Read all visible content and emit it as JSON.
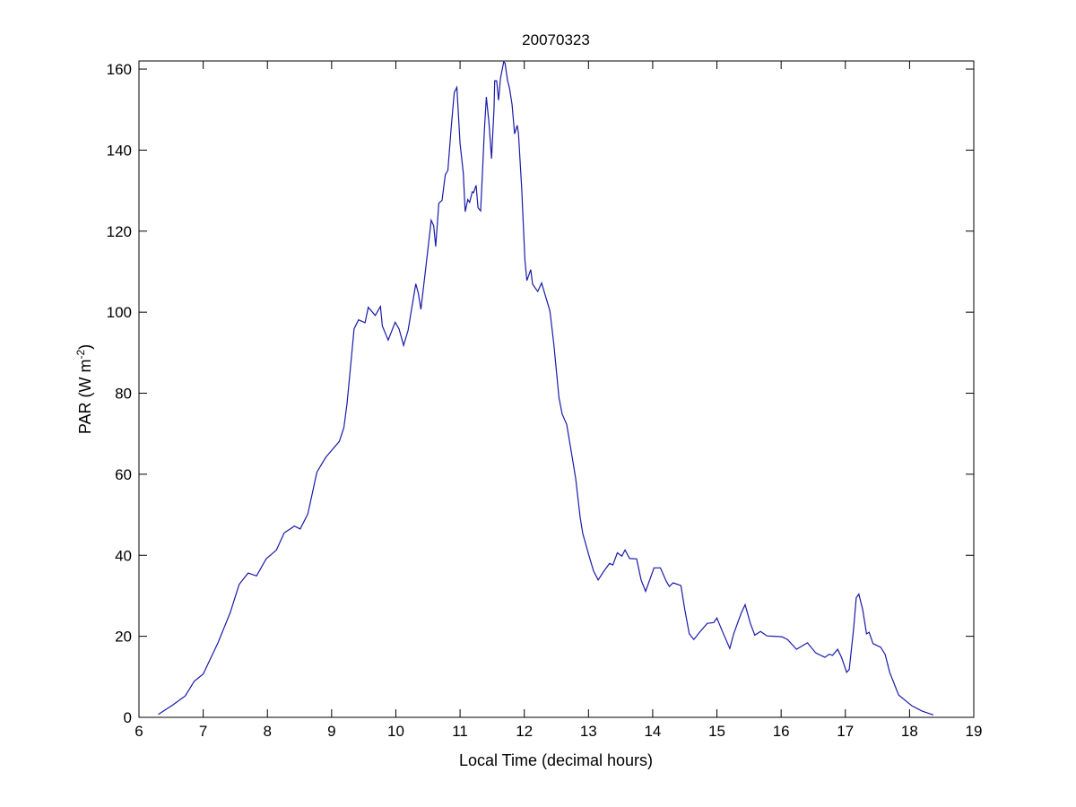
{
  "chart_data": {
    "type": "line",
    "title": "20070323",
    "xlabel": "Local Time (decimal hours)",
    "ylabel": {
      "main": "PAR (W m",
      "sup": "-2",
      "end": ")"
    },
    "xlim": [
      6,
      19
    ],
    "ylim": [
      0,
      162
    ],
    "xticks": [
      6,
      7,
      8,
      9,
      10,
      11,
      12,
      13,
      14,
      15,
      16,
      17,
      18,
      19
    ],
    "yticks": [
      0,
      20,
      40,
      60,
      80,
      100,
      120,
      140,
      160
    ],
    "grid": false,
    "line_color": "#1a1aa8",
    "series": [
      {
        "x": [
          6.3,
          6.53,
          6.72,
          6.86,
          7.0,
          7.23,
          7.42,
          7.56,
          7.7,
          7.83,
          7.98,
          8.14,
          8.26,
          8.42,
          8.51,
          8.63,
          8.77,
          8.91,
          9.12,
          9.19,
          9.24,
          9.28,
          9.35,
          9.42,
          9.52,
          9.57,
          9.68,
          9.76,
          9.79,
          9.88,
          9.99,
          10.05,
          10.12,
          10.19,
          10.31,
          10.35,
          10.39,
          10.47,
          10.55,
          10.59,
          10.62,
          10.67,
          10.72,
          10.77,
          10.81,
          10.86,
          10.91,
          10.95,
          11.0,
          11.05,
          11.08,
          11.12,
          11.15,
          11.19,
          11.21,
          11.25,
          11.28,
          11.32,
          11.34,
          11.38,
          11.41,
          11.45,
          11.49,
          11.53,
          11.54,
          11.57,
          11.6,
          11.63,
          11.68,
          11.7,
          11.74,
          11.77,
          11.81,
          11.85,
          11.89,
          11.91,
          11.96,
          12.01,
          12.04,
          12.1,
          12.13,
          12.21,
          12.27,
          12.4,
          12.46,
          12.54,
          12.59,
          12.66,
          12.73,
          12.8,
          12.87,
          12.91,
          13.01,
          13.08,
          13.15,
          13.24,
          13.33,
          13.38,
          13.45,
          13.52,
          13.57,
          13.64,
          13.75,
          13.82,
          13.89,
          14.02,
          14.12,
          14.21,
          14.26,
          14.32,
          14.44,
          14.5,
          14.57,
          14.64,
          14.73,
          14.85,
          14.95,
          15.0,
          15.08,
          15.2,
          15.26,
          15.38,
          15.44,
          15.52,
          15.59,
          15.68,
          15.78,
          16.01,
          16.1,
          16.24,
          16.41,
          16.54,
          16.68,
          16.75,
          16.8,
          16.88,
          16.94,
          17.02,
          17.06,
          17.13,
          17.17,
          17.21,
          17.27,
          17.33,
          17.37,
          17.43,
          17.55,
          17.62,
          17.69,
          17.83,
          18.04,
          18.2,
          18.37
        ],
        "y": [
          0.7,
          3.1,
          5.3,
          8.9,
          10.7,
          18.4,
          25.8,
          32.8,
          35.6,
          34.9,
          39.1,
          41.3,
          45.5,
          47.2,
          46.5,
          50.2,
          60.5,
          64.2,
          68.1,
          71.5,
          77.4,
          84.1,
          95.9,
          98.1,
          97.4,
          101.2,
          99.2,
          101.4,
          96.6,
          93.1,
          97.5,
          95.9,
          91.8,
          95.5,
          107.0,
          104.7,
          100.7,
          111.4,
          122.7,
          121.3,
          116.2,
          126.9,
          127.6,
          133.9,
          135.0,
          145.3,
          154.2,
          155.5,
          141.6,
          134.3,
          124.8,
          127.8,
          127.1,
          129.7,
          129.5,
          131.3,
          125.8,
          125.0,
          131.3,
          145.3,
          153.1,
          146.8,
          137.9,
          150.5,
          157.1,
          157.1,
          152.3,
          157.8,
          161.8,
          161.5,
          157.1,
          155.3,
          151.2,
          144.0,
          146.1,
          144.2,
          130.6,
          112.9,
          107.8,
          110.5,
          106.9,
          105.1,
          107.2,
          100.3,
          92.2,
          78.9,
          74.9,
          72.3,
          65.7,
          59.0,
          49.4,
          45.4,
          39.8,
          36.1,
          33.9,
          36.1,
          38.0,
          37.6,
          40.6,
          39.8,
          41.3,
          39.2,
          39.1,
          33.9,
          31.1,
          36.9,
          36.9,
          33.6,
          32.3,
          33.2,
          32.5,
          26.6,
          20.6,
          19.2,
          21.0,
          23.2,
          23.4,
          24.5,
          21.4,
          17.0,
          20.6,
          25.8,
          27.8,
          23.2,
          20.3,
          21.2,
          20.1,
          19.9,
          19.2,
          16.8,
          18.4,
          15.9,
          14.8,
          15.6,
          15.3,
          16.8,
          14.8,
          11.1,
          11.8,
          22.1,
          29.5,
          30.4,
          26.6,
          20.6,
          21.0,
          18.2,
          17.3,
          15.5,
          11.1,
          5.5,
          2.8,
          1.5,
          0.6
        ]
      }
    ]
  }
}
